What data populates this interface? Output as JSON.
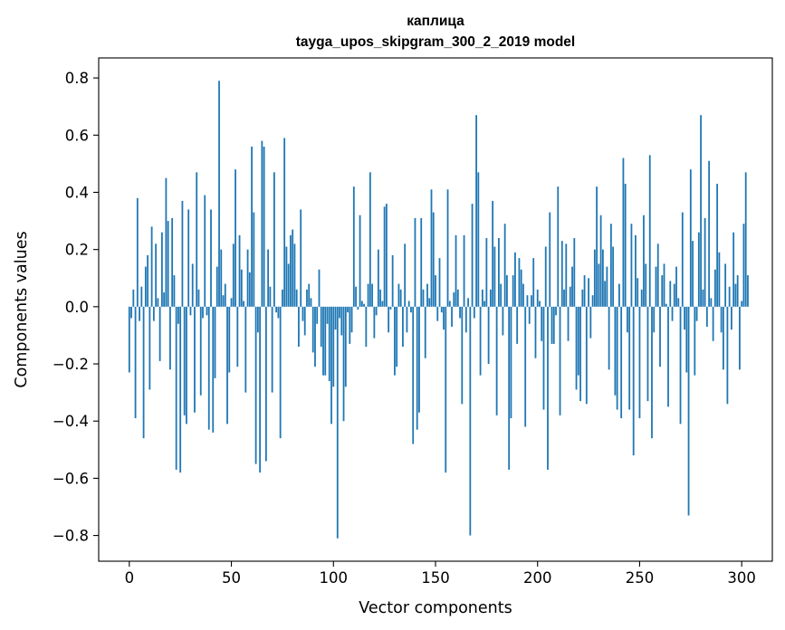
{
  "chart_data": {
    "type": "bar",
    "title": "каплица",
    "subtitle": "tayga_upos_skipgram_300_2_2019 model",
    "xlabel": "Vector components",
    "ylabel": "Components values",
    "xlim": [
      -15,
      315
    ],
    "ylim": [
      -0.89,
      0.87
    ],
    "x_ticks": [
      0,
      50,
      100,
      150,
      200,
      250,
      300
    ],
    "x_tick_labels": [
      "0",
      "50",
      "100",
      "150",
      "200",
      "250",
      "300"
    ],
    "y_ticks": [
      -0.8,
      -0.6,
      -0.4,
      -0.2,
      0.0,
      0.2,
      0.4,
      0.6,
      0.8
    ],
    "y_tick_labels": [
      "−0.8",
      "−0.6",
      "−0.4",
      "−0.2",
      "0.0",
      "0.2",
      "0.4",
      "0.6",
      "0.8"
    ],
    "bar_color": "#1f77b4",
    "series": [
      {
        "name": "каплица",
        "values": [
          -0.23,
          -0.04,
          0.06,
          -0.39,
          0.38,
          -0.05,
          0.07,
          -0.46,
          0.14,
          0.18,
          -0.29,
          0.28,
          -0.05,
          0.22,
          0.03,
          -0.19,
          0.26,
          0.05,
          0.45,
          0.3,
          -0.22,
          0.31,
          0.11,
          -0.57,
          -0.06,
          -0.58,
          0.37,
          -0.38,
          -0.41,
          0.34,
          -0.03,
          0.15,
          -0.37,
          0.47,
          0.06,
          -0.31,
          -0.04,
          0.39,
          -0.03,
          -0.43,
          0.34,
          -0.44,
          -0.25,
          0.14,
          0.79,
          0.2,
          0.04,
          0.08,
          -0.41,
          -0.23,
          0.03,
          0.22,
          0.48,
          -0.21,
          0.25,
          0.13,
          0.02,
          -0.3,
          0.2,
          0.12,
          0.56,
          0.33,
          -0.55,
          -0.09,
          -0.58,
          0.58,
          0.56,
          -0.54,
          0.2,
          0.07,
          -0.3,
          0.47,
          -0.02,
          -0.04,
          -0.46,
          0.06,
          0.59,
          0.21,
          0.15,
          0.25,
          0.27,
          0.22,
          0.06,
          -0.14,
          0.34,
          -0.05,
          -0.1,
          0.06,
          0.08,
          0.03,
          -0.16,
          -0.21,
          -0.06,
          0.13,
          -0.14,
          -0.24,
          -0.24,
          -0.06,
          -0.26,
          -0.41,
          -0.28,
          -0.08,
          -0.81,
          -0.04,
          -0.1,
          -0.4,
          -0.28,
          -0.02,
          -0.13,
          -0.09,
          0.42,
          0.07,
          -0.01,
          0.32,
          0.02,
          0.01,
          -0.14,
          0.08,
          0.47,
          0.08,
          -0.11,
          -0.03,
          0.2,
          0.06,
          0.02,
          0.35,
          0.36,
          -0.09,
          -0.01,
          0.18,
          -0.24,
          -0.21,
          0.08,
          0.06,
          -0.14,
          0.22,
          -0.09,
          0.02,
          -0.02,
          -0.48,
          0.31,
          -0.43,
          -0.37,
          0.31,
          0.06,
          -0.18,
          0.08,
          0.03,
          0.41,
          0.33,
          0.11,
          -0.05,
          0.17,
          -0.02,
          -0.08,
          -0.58,
          0.41,
          0.02,
          -0.07,
          0.05,
          0.25,
          0.06,
          -0.04,
          -0.34,
          0.25,
          -0.09,
          0.03,
          -0.8,
          0.36,
          -0.04,
          0.67,
          0.47,
          -0.24,
          0.06,
          0.02,
          0.24,
          -0.2,
          0.06,
          0.37,
          0.21,
          -0.38,
          0.24,
          0.08,
          -0.1,
          0.29,
          0.11,
          -0.57,
          -0.39,
          0.11,
          0.19,
          -0.13,
          0.17,
          0.13,
          0.08,
          -0.42,
          0.04,
          -0.06,
          0.04,
          0.17,
          -0.18,
          0.06,
          0.02,
          -0.12,
          -0.36,
          0.21,
          -0.57,
          0.33,
          -0.13,
          -0.13,
          -0.03,
          0.42,
          -0.38,
          0.23,
          0.06,
          0.22,
          -0.12,
          0.07,
          0.14,
          0.24,
          -0.29,
          -0.24,
          -0.33,
          0.06,
          0.11,
          -0.34,
          0.1,
          -0.11,
          0.04,
          0.2,
          0.42,
          0.15,
          0.32,
          0.2,
          0.09,
          0.14,
          -0.22,
          0.29,
          0.21,
          -0.31,
          -0.36,
          0.08,
          -0.39,
          0.52,
          0.43,
          -0.09,
          -0.36,
          0.29,
          -0.52,
          0.25,
          0.1,
          -0.39,
          0.06,
          0.32,
          0.15,
          -0.33,
          0.53,
          -0.46,
          -0.09,
          0.14,
          0.22,
          -0.21,
          0.11,
          0.15,
          0.01,
          -0.35,
          0.09,
          -0.05,
          0.08,
          0.14,
          0.03,
          -0.41,
          0.33,
          -0.08,
          -0.23,
          -0.73,
          0.48,
          0.23,
          -0.24,
          -0.05,
          0.26,
          0.67,
          0.06,
          0.31,
          -0.07,
          0.51,
          0.03,
          -0.12,
          0.13,
          0.43,
          0.19,
          -0.09,
          -0.22,
          0.15,
          -0.34,
          0.07,
          -0.08,
          0.26,
          0.08,
          0.11,
          -0.22,
          0.02,
          0.29,
          0.47,
          0.11
        ]
      }
    ]
  }
}
